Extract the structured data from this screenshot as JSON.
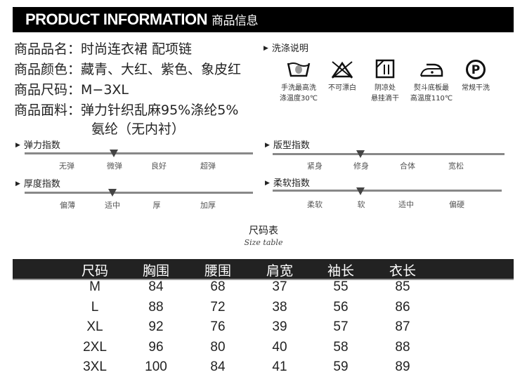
{
  "header": {
    "title_en": "PRODUCT INFORMATION",
    "title_cn": "商品信息"
  },
  "info": [
    "商品品名：时尚连衣裙  配项链",
    "商品颜色：藏青、大红、紫色、象皮红",
    "商品尺码：M−3XL",
    "商品面料：弹力针织乱麻95%涤纶5%",
    "氨纶（无内衬）"
  ],
  "care": {
    "title": "洗涤说明",
    "items": [
      {
        "icon": "hand-wash-icon",
        "line1": "手洗最高洗",
        "line2": "涤温度30℃"
      },
      {
        "icon": "no-bleach-icon",
        "line1": "不可漂白",
        "line2": ""
      },
      {
        "icon": "line-dry-shade-icon",
        "line1": "阴凉处",
        "line2": "悬挂滴干"
      },
      {
        "icon": "iron-icon",
        "line1": "熨斗底板最",
        "line2": "高温度110℃"
      },
      {
        "icon": "dry-clean-icon",
        "line1": "常规干洗",
        "line2": ""
      }
    ]
  },
  "indices": [
    {
      "title": "弹力指数",
      "labels": [
        "无弹",
        "微弹",
        "良好",
        "超弹"
      ],
      "selected": "微弹"
    },
    {
      "title": "版型指数",
      "labels": [
        "紧身",
        "修身",
        "合体",
        "宽松"
      ],
      "selected": "修身"
    },
    {
      "title": "厚度指数",
      "labels": [
        "偏薄",
        "适中",
        "厚",
        "加厚"
      ],
      "selected": "适中"
    },
    {
      "title": "柔软指数",
      "labels": [
        "柔软",
        "软",
        "适中",
        "偏硬"
      ],
      "selected": "软"
    }
  ],
  "size_table": {
    "title": "尺码表",
    "subtitle": "Size table",
    "headers": [
      "尺码",
      "胸围",
      "腰围",
      "肩宽",
      "袖长",
      "衣长"
    ],
    "rows": [
      [
        "M",
        "84",
        "68",
        "37",
        "55",
        "85"
      ],
      [
        "L",
        "88",
        "72",
        "38",
        "56",
        "86"
      ],
      [
        "XL",
        "92",
        "76",
        "39",
        "57",
        "87"
      ],
      [
        "2XL",
        "96",
        "80",
        "40",
        "58",
        "88"
      ],
      [
        "3XL",
        "100",
        "84",
        "41",
        "59",
        "89"
      ]
    ]
  }
}
